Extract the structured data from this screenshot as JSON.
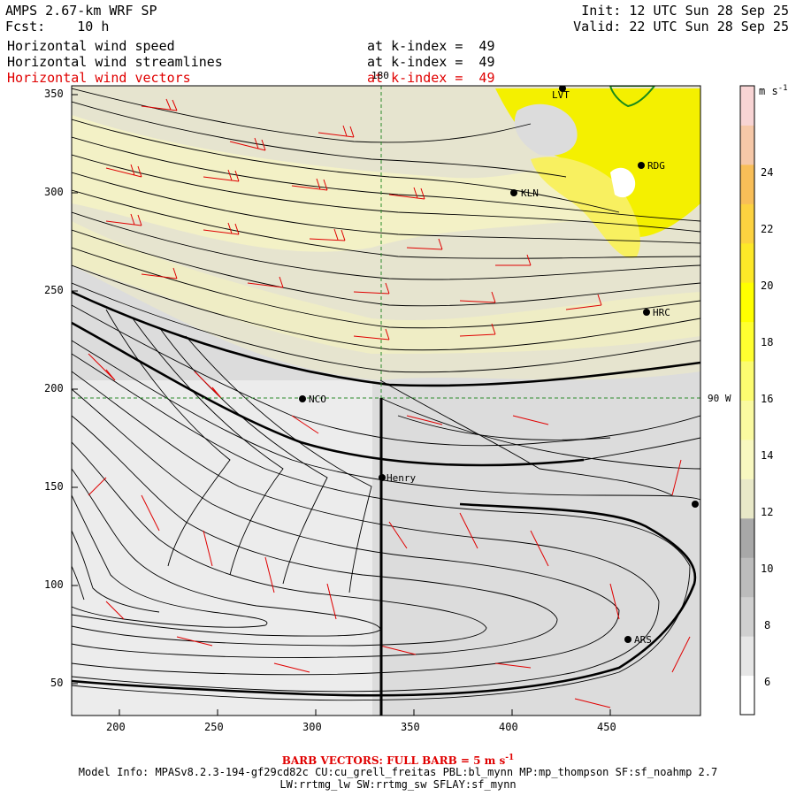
{
  "header": {
    "title": "AMPS 2.67-km WRF SP",
    "fcst": "Fcst:    10 h",
    "init": "Init: 12 UTC Sun 28 Sep 25",
    "valid": "Valid: 22 UTC Sun 28 Sep 25"
  },
  "fields": [
    {
      "name": "Horizontal wind speed",
      "level": "at k-index =  49",
      "color": "#000000"
    },
    {
      "name": "Horizontal wind streamlines",
      "level": "at k-index =  49",
      "color": "#000000"
    },
    {
      "name": "Horizontal wind vectors",
      "level": "at k-index =  49",
      "color": "#e00000"
    }
  ],
  "map": {
    "x_ticks": [
      "200",
      "250",
      "300",
      "350",
      "400",
      "450"
    ],
    "y_ticks": [
      "350",
      "300",
      "250",
      "200",
      "150",
      "100",
      "50"
    ],
    "meridian_label": "180",
    "parallel_label": "90 W",
    "stations": [
      "LVT",
      "RDG",
      "KLN",
      "HRC",
      "NCO",
      "Henry",
      "ARS"
    ]
  },
  "colorbar": {
    "units": "m s",
    "units_exp": "-1",
    "labels": [
      "24",
      "22",
      "20",
      "18",
      "16",
      "14",
      "12",
      "10",
      "8",
      "6"
    ],
    "colors": [
      "#ffffff",
      "#e6e6e6",
      "#d0d0d0",
      "#bcbcbc",
      "#a8a8a8",
      "#e8e8c8",
      "#f8f8c0",
      "#fafaa0",
      "#fcfc70",
      "#ffff30",
      "#ffff00",
      "#fde828",
      "#fcd240",
      "#f8be58",
      "#f6c8a8",
      "#f8d4d4"
    ]
  },
  "footer": {
    "barb": "BARB VECTORS:  FULL BARB = 5 m s",
    "barb_exp": "-1",
    "model_info": "Model Info: MPASv8.2.3-194-gf29cd82c CU:cu_grell_freitas PBL:bl_mynn MP:mp_thompson SF:sf_noahmp 2.7",
    "model_info2": "LW:rrtmg_lw SW:rrtmg_sw SFLAY:sf_mynn"
  }
}
